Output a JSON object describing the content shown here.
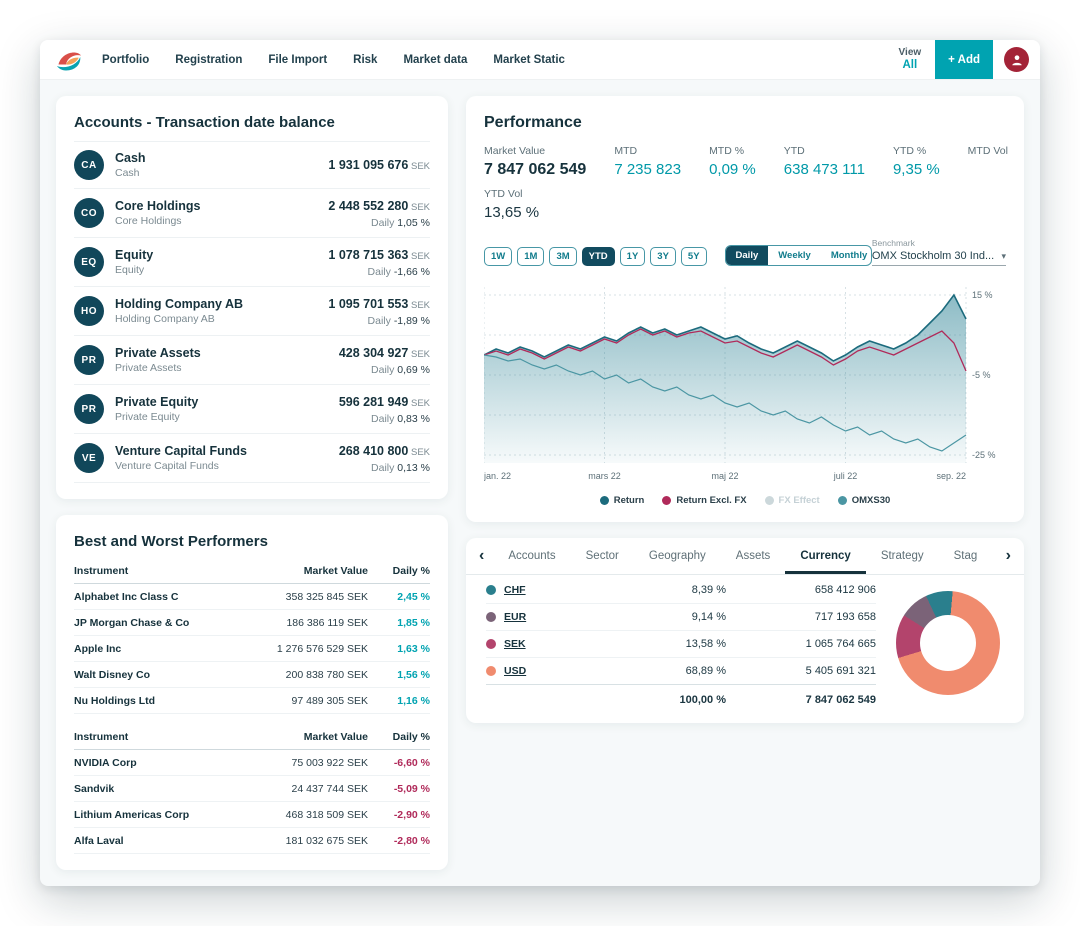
{
  "nav": {
    "items": [
      "Portfolio",
      "Registration",
      "File Import",
      "Risk",
      "Market data",
      "Market Static"
    ],
    "view_label": "View",
    "all_label": "All",
    "add_label": "+ Add"
  },
  "accounts": {
    "title": "Accounts - Transaction date balance",
    "daily_label": "Daily",
    "rows": [
      {
        "badge": "CA",
        "name": "Cash",
        "sub": "Cash",
        "value": "1 931 095 676",
        "currency": "SEK",
        "daily": ""
      },
      {
        "badge": "CO",
        "name": "Core Holdings",
        "sub": "Core Holdings",
        "value": "2 448 552 280",
        "currency": "SEK",
        "daily": "1,05 %"
      },
      {
        "badge": "EQ",
        "name": "Equity",
        "sub": "Equity",
        "value": "1 078 715 363",
        "currency": "SEK",
        "daily": "-1,66 %"
      },
      {
        "badge": "HO",
        "name": "Holding Company AB",
        "sub": "Holding Company AB",
        "value": "1 095 701 553",
        "currency": "SEK",
        "daily": "-1,89 %"
      },
      {
        "badge": "PR",
        "name": "Private Assets",
        "sub": "Private Assets",
        "value": "428 304 927",
        "currency": "SEK",
        "daily": "0,69 %"
      },
      {
        "badge": "PR",
        "name": "Private Equity",
        "sub": "Private Equity",
        "value": "596 281 949",
        "currency": "SEK",
        "daily": "0,83 %"
      },
      {
        "badge": "VE",
        "name": "Venture Capital Funds",
        "sub": "Venture Capital Funds",
        "value": "268 410 800",
        "currency": "SEK",
        "daily": "0,13 %"
      }
    ]
  },
  "performers": {
    "title": "Best and Worst Performers",
    "headers": [
      "Instrument",
      "Market Value",
      "Daily %"
    ],
    "best": [
      {
        "name": "Alphabet Inc Class C",
        "value": "358 325 845 SEK",
        "pct": "2,45 %"
      },
      {
        "name": "JP Morgan Chase & Co",
        "value": "186 386 119 SEK",
        "pct": "1,85 %"
      },
      {
        "name": "Apple Inc",
        "value": "1 276 576 529 SEK",
        "pct": "1,63 %"
      },
      {
        "name": "Walt Disney Co",
        "value": "200 838 780 SEK",
        "pct": "1,56 %"
      },
      {
        "name": "Nu Holdings Ltd",
        "value": "97 489 305 SEK",
        "pct": "1,16 %"
      }
    ],
    "worst": [
      {
        "name": "NVIDIA Corp",
        "value": "75 003 922 SEK",
        "pct": "-6,60 %"
      },
      {
        "name": "Sandvik",
        "value": "24 437 744 SEK",
        "pct": "-5,09 %"
      },
      {
        "name": "Lithium Americas Corp",
        "value": "468 318 509 SEK",
        "pct": "-2,90 %"
      },
      {
        "name": "Alfa Laval",
        "value": "181 032 675 SEK",
        "pct": "-2,80 %"
      }
    ]
  },
  "performance": {
    "title": "Performance",
    "stats": [
      {
        "label": "Market Value",
        "value": "7 847 062 549",
        "style": "dark"
      },
      {
        "label": "MTD",
        "value": "7 235 823",
        "style": "teal"
      },
      {
        "label": "MTD %",
        "value": "0,09 %",
        "style": "teal"
      },
      {
        "label": "YTD",
        "value": "638 473 111",
        "style": "teal"
      },
      {
        "label": "YTD %",
        "value": "9,35 %",
        "style": "teal"
      },
      {
        "label": "MTD Vol",
        "value": "",
        "style": "dark"
      }
    ],
    "ytd_vol_label": "YTD Vol",
    "ytd_vol_value": "13,65 %",
    "ranges": [
      "1W",
      "1M",
      "3M",
      "YTD",
      "1Y",
      "3Y",
      "5Y"
    ],
    "range_selected": "YTD",
    "freqs": [
      "Daily",
      "Weekly",
      "Monthly"
    ],
    "freq_selected": "Daily",
    "benchmark_label": "Benchmark",
    "benchmark_value": "OMX Stockholm 30 Ind..."
  },
  "chart_data": {
    "type": "line",
    "title": "Performance YTD vs benchmark",
    "x_labels": [
      "jan. 22",
      "mars 22",
      "maj 22",
      "juli 22",
      "sep. 22"
    ],
    "ylim": [
      -27,
      17
    ],
    "grid_y": [
      15,
      5,
      -5,
      -15,
      -25
    ],
    "y_tick_values": [
      15,
      -5,
      -25
    ],
    "y_tick_labels": [
      "15 %",
      "-5 %",
      "-25 %"
    ],
    "legend_position": "bottom",
    "series": [
      {
        "name": "Return",
        "color": "#1c6b7d",
        "fill": true,
        "width": 1.6,
        "disabled": false,
        "values": [
          0,
          1.5,
          0.5,
          2,
          1,
          -0.5,
          1,
          2.5,
          1.5,
          3,
          4.5,
          3.5,
          5.5,
          7,
          5.5,
          6.5,
          5,
          6,
          7,
          5.5,
          4,
          4.8,
          3,
          1.5,
          0.5,
          2,
          3.5,
          2,
          0.5,
          -1.5,
          0,
          2,
          3.5,
          2.5,
          1.5,
          3,
          5,
          8,
          11,
          15,
          9
        ]
      },
      {
        "name": "Return Excl. FX",
        "color": "#b02a5a",
        "fill": false,
        "width": 1.3,
        "disabled": false,
        "values": [
          0,
          1,
          0,
          1.5,
          0.5,
          -1,
          0.5,
          2,
          1,
          2.5,
          4,
          3,
          5,
          6.5,
          5,
          6,
          4.5,
          5.5,
          6,
          4.5,
          3,
          3.5,
          2,
          0.5,
          -0.5,
          1,
          2.5,
          1,
          -0.5,
          -2.5,
          -1,
          1,
          2,
          1,
          0,
          1.5,
          3,
          4.5,
          6,
          3,
          -4
        ]
      },
      {
        "name": "FX Effect",
        "color": "#c5d1d6",
        "fill": false,
        "width": 1,
        "disabled": true,
        "values": []
      },
      {
        "name": "OMXS30",
        "color": "#4b96a3",
        "fill": false,
        "width": 1.2,
        "disabled": false,
        "values": [
          0,
          -0.5,
          -1.5,
          -1,
          -2.5,
          -3.5,
          -2.5,
          -4,
          -5,
          -4,
          -6,
          -5,
          -7,
          -6,
          -8,
          -9,
          -8,
          -10,
          -11,
          -10,
          -12,
          -13,
          -12,
          -14,
          -15,
          -14,
          -16,
          -17,
          -15.5,
          -17.5,
          -19,
          -18,
          -20,
          -19,
          -21,
          -22,
          -21,
          -23,
          -24,
          -22,
          -20
        ]
      }
    ]
  },
  "breakdown": {
    "tabs": [
      "Accounts",
      "Sector",
      "Geography",
      "Assets",
      "Currency",
      "Strategy",
      "Stag"
    ],
    "selected": "Currency",
    "rows": [
      {
        "code": "CHF",
        "color": "#2a7f8d",
        "pct": "8,39 %",
        "value": "658 412 906",
        "share": 8.39
      },
      {
        "code": "EUR",
        "color": "#7b6378",
        "pct": "9,14 %",
        "value": "717 193 658",
        "share": 9.14
      },
      {
        "code": "SEK",
        "color": "#b3446c",
        "pct": "13,58 %",
        "value": "1 065 764 665",
        "share": 13.58
      },
      {
        "code": "USD",
        "color": "#f08b6e",
        "pct": "68,89 %",
        "value": "5 405 691 321",
        "share": 68.89
      }
    ],
    "total_pct": "100,00 %",
    "total_value": "7 847 062 549",
    "donut_order": [
      "CHF",
      "USD",
      "SEK",
      "EUR"
    ],
    "donut_start_deg": 335
  }
}
